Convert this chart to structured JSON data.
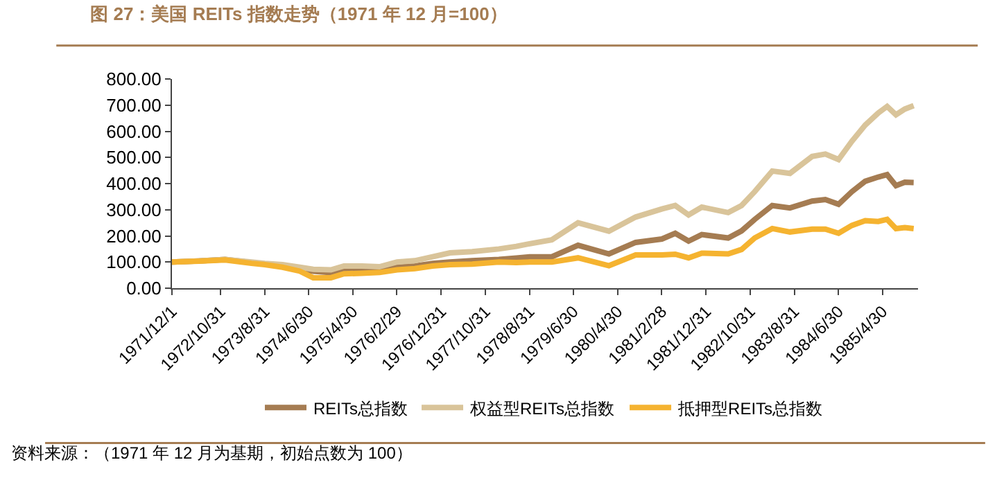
{
  "chart_data": {
    "type": "line",
    "title": "图 27：美国 REITs 指数走势（1971 年 12 月=100）",
    "x": [
      "1971-12",
      "1972-06",
      "1972-12",
      "1973-06",
      "1973-09",
      "1974-01",
      "1974-05",
      "1974-08",
      "1974-12",
      "1975-03",
      "1975-07",
      "1975-11",
      "1976-03",
      "1976-07",
      "1976-11",
      "1977-03",
      "1977-08",
      "1978-02",
      "1978-06",
      "1978-09",
      "1979-02",
      "1979-08",
      "1980-03",
      "1980-09",
      "1981-03",
      "1981-06",
      "1981-09",
      "1981-12",
      "1982-06",
      "1982-09",
      "1982-12",
      "1983-04",
      "1983-08",
      "1984-01",
      "1984-04",
      "1984-07",
      "1984-10",
      "1985-01",
      "1985-04",
      "1985-06",
      "1985-08",
      "1985-10",
      "1985-12"
    ],
    "series": [
      {
        "name": "REITs总指数",
        "color": "#a57c52",
        "values": [
          100,
          104,
          110,
          98,
          93,
          88,
          72,
          65,
          60,
          65,
          66,
          68,
          80,
          85,
          95,
          100,
          105,
          110,
          115,
          120,
          120,
          164,
          131,
          175,
          188,
          210,
          180,
          205,
          192,
          219,
          263,
          316,
          307,
          333,
          339,
          321,
          369,
          409,
          425,
          434,
          392,
          405,
          404
        ]
      },
      {
        "name": "权益型REITs总指数",
        "color": "#d9c49a",
        "values": [
          100,
          104,
          110,
          100,
          95,
          90,
          80,
          72,
          70,
          85,
          85,
          82,
          100,
          105,
          120,
          135,
          140,
          150,
          160,
          170,
          185,
          250,
          218,
          272,
          303,
          316,
          280,
          310,
          289,
          316,
          369,
          448,
          439,
          504,
          513,
          492,
          562,
          624,
          670,
          695,
          663,
          685,
          698
        ]
      },
      {
        "name": "抵押型REITs总指数",
        "color": "#f5b330",
        "values": [
          100,
          103,
          108,
          95,
          90,
          80,
          65,
          40,
          40,
          55,
          57,
          60,
          70,
          75,
          85,
          90,
          92,
          100,
          98,
          100,
          100,
          116,
          86,
          127,
          127,
          130,
          116,
          134,
          131,
          148,
          192,
          228,
          215,
          226,
          226,
          210,
          240,
          258,
          255,
          263,
          228,
          232,
          228
        ]
      }
    ],
    "xlim": [
      "1971-12-01",
      "1985-12-31"
    ],
    "xticks": [
      {
        "value": "1971-12-01",
        "label": "1971/12/1"
      },
      {
        "value": "1972-10-31",
        "label": "1972/10/31"
      },
      {
        "value": "1973-08-31",
        "label": "1973/8/31"
      },
      {
        "value": "1974-06-30",
        "label": "1974/6/30"
      },
      {
        "value": "1975-04-30",
        "label": "1975/4/30"
      },
      {
        "value": "1976-02-29",
        "label": "1976/2/29"
      },
      {
        "value": "1976-12-31",
        "label": "1976/12/31"
      },
      {
        "value": "1977-10-31",
        "label": "1977/10/31"
      },
      {
        "value": "1978-08-31",
        "label": "1978/8/31"
      },
      {
        "value": "1979-06-30",
        "label": "1979/6/30"
      },
      {
        "value": "1980-04-30",
        "label": "1980/4/30"
      },
      {
        "value": "1981-02-28",
        "label": "1981/2/28"
      },
      {
        "value": "1981-12-31",
        "label": "1981/12/31"
      },
      {
        "value": "1982-10-31",
        "label": "1982/10/31"
      },
      {
        "value": "1983-08-31",
        "label": "1983/8/31"
      },
      {
        "value": "1984-06-30",
        "label": "1984/6/30"
      },
      {
        "value": "1985-04-30",
        "label": "1985/4/30"
      }
    ],
    "ylim": [
      0,
      800
    ],
    "yticks": [
      {
        "value": 0,
        "label": "0.00"
      },
      {
        "value": 100,
        "label": "100.00"
      },
      {
        "value": 200,
        "label": "200.00"
      },
      {
        "value": 300,
        "label": "300.00"
      },
      {
        "value": 400,
        "label": "400.00"
      },
      {
        "value": 500,
        "label": "500.00"
      },
      {
        "value": 600,
        "label": "600.00"
      },
      {
        "value": 700,
        "label": "700.00"
      },
      {
        "value": 800,
        "label": "800.00"
      }
    ],
    "legend": "bottom",
    "marker": "none",
    "line_style": "solid",
    "annotations": [
      "资料来源：（1971 年 12 月为基期，初始点数为 100）"
    ]
  }
}
